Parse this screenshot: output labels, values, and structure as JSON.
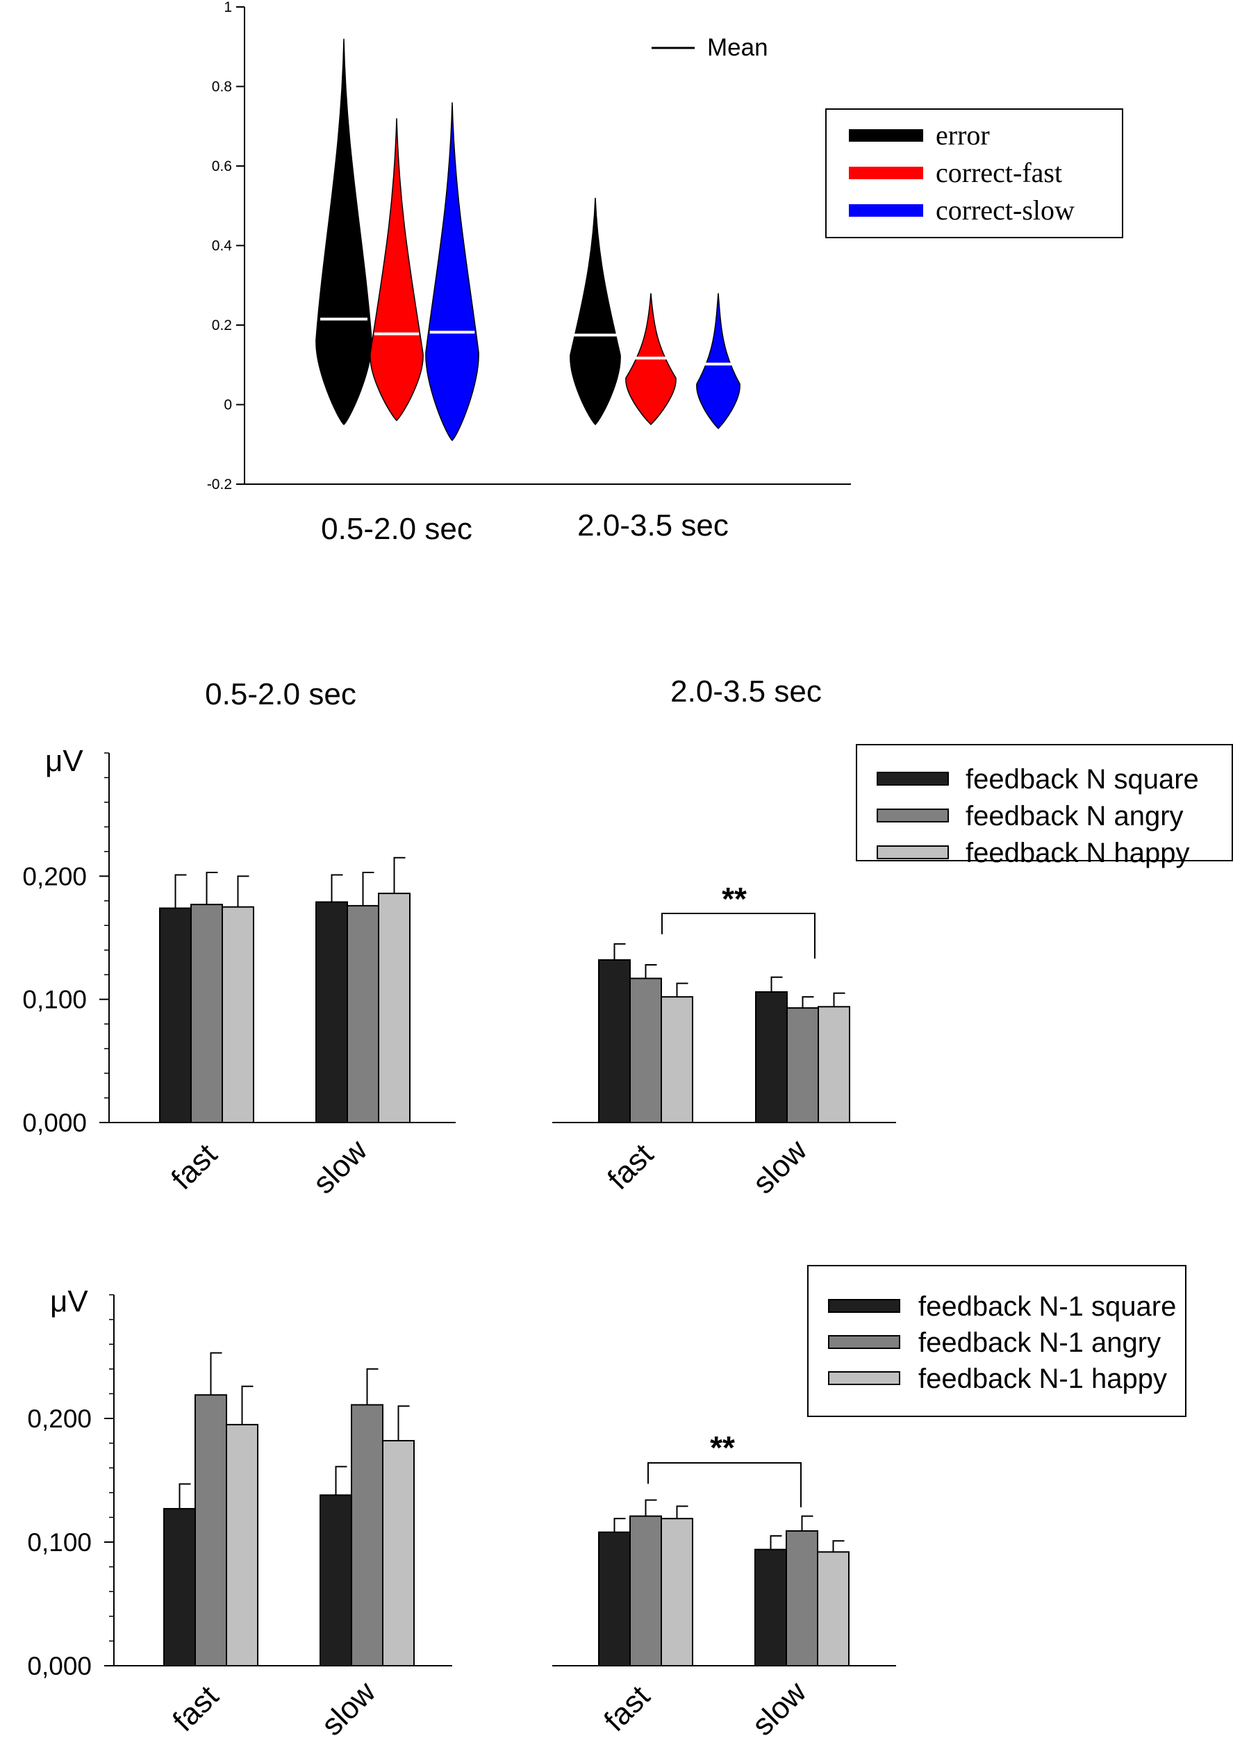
{
  "charts": {
    "violin": {
      "type": "violin",
      "ylim": [
        -0.2,
        1.0
      ],
      "yticks": [
        "-0.2",
        "0",
        "0.2",
        "0.4",
        "0.6",
        "0.8",
        "1"
      ],
      "groups": [
        "0.5-2.0 sec",
        "2.0-3.5 sec"
      ],
      "mean_legend": "Mean",
      "legend": [
        "error",
        "correct-fast",
        "correct-slow"
      ],
      "colors": [
        "#000000",
        "#ff0000",
        "#0000ff"
      ],
      "series": [
        {
          "group": "0.5-2.0 sec",
          "condition": "error",
          "mean": 0.215,
          "min": -0.05,
          "max": 0.92
        },
        {
          "group": "0.5-2.0 sec",
          "condition": "correct-fast",
          "mean": 0.178,
          "min": -0.04,
          "max": 0.72
        },
        {
          "group": "0.5-2.0 sec",
          "condition": "correct-slow",
          "mean": 0.182,
          "min": -0.09,
          "max": 0.76
        },
        {
          "group": "2.0-3.5 sec",
          "condition": "error",
          "mean": 0.175,
          "min": -0.05,
          "max": 0.52
        },
        {
          "group": "2.0-3.5 sec",
          "condition": "correct-fast",
          "mean": 0.117,
          "min": -0.05,
          "max": 0.28
        },
        {
          "group": "2.0-3.5 sec",
          "condition": "correct-slow",
          "mean": 0.102,
          "min": -0.06,
          "max": 0.28
        }
      ]
    },
    "bar_n": {
      "type": "bar",
      "ylabel": "μV",
      "ylim": [
        0,
        0.3
      ],
      "yticks": [
        "0,000",
        "0,100",
        "0,200"
      ],
      "panel_titles": [
        "0.5-2.0 sec",
        "2.0-3.5 sec"
      ],
      "categories": [
        "fast",
        "slow"
      ],
      "legend": [
        "feedback N square",
        "feedback N angry",
        "feedback N happy"
      ],
      "colors": [
        "#1f1f1f",
        "#808080",
        "#c0c0c0"
      ],
      "significance": "**",
      "panels": [
        {
          "title": "0.5-2.0 sec",
          "values": [
            [
              0.174,
              0.177,
              0.175
            ],
            [
              0.179,
              0.176,
              0.186
            ]
          ],
          "errors": [
            [
              0.027,
              0.026,
              0.025
            ],
            [
              0.022,
              0.027,
              0.029
            ]
          ]
        },
        {
          "title": "2.0-3.5 sec",
          "values": [
            [
              0.132,
              0.117,
              0.102
            ],
            [
              0.106,
              0.093,
              0.094
            ]
          ],
          "errors": [
            [
              0.013,
              0.011,
              0.011
            ],
            [
              0.012,
              0.009,
              0.011
            ]
          ]
        }
      ]
    },
    "bar_n1": {
      "type": "bar",
      "ylabel": "μV",
      "ylim": [
        0,
        0.3
      ],
      "yticks": [
        "0,000",
        "0,100",
        "0,200"
      ],
      "categories": [
        "fast",
        "slow"
      ],
      "legend": [
        "feedback N-1 square",
        "feedback N-1 angry",
        "feedback N-1 happy"
      ],
      "colors": [
        "#1f1f1f",
        "#808080",
        "#c0c0c0"
      ],
      "significance": "**",
      "panels": [
        {
          "values": [
            [
              0.127,
              0.219,
              0.195
            ],
            [
              0.138,
              0.211,
              0.182
            ]
          ],
          "errors": [
            [
              0.02,
              0.034,
              0.031
            ],
            [
              0.023,
              0.029,
              0.028
            ]
          ]
        },
        {
          "values": [
            [
              0.108,
              0.121,
              0.119
            ],
            [
              0.094,
              0.109,
              0.092
            ]
          ],
          "errors": [
            [
              0.011,
              0.013,
              0.01
            ],
            [
              0.011,
              0.012,
              0.009
            ]
          ]
        }
      ]
    }
  }
}
